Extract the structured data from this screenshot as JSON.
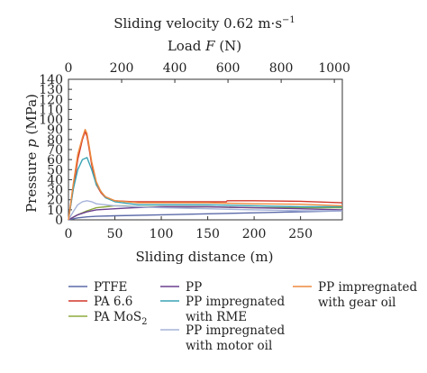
{
  "chart_data": {
    "type": "line",
    "title_top_1": "Sliding velocity 0.62 m·s",
    "title_top_1_sup": "−1",
    "title_top_2_prefix": "Load ",
    "title_top_2_var": "F",
    "title_top_2_suffix": " (N)",
    "xlabel": "Sliding distance (m)",
    "ylabel_prefix": "Pressure ",
    "ylabel_var": "p",
    "ylabel_suffix": " (MPa)",
    "xlim": [
      0,
      295
    ],
    "ylim": [
      0,
      140
    ],
    "x2lim": [
      0,
      1030
    ],
    "x_ticks": [
      0,
      50,
      100,
      150,
      200,
      250
    ],
    "y_ticks": [
      0,
      10,
      20,
      30,
      40,
      50,
      60,
      70,
      80,
      90,
      100,
      110,
      120,
      130,
      140
    ],
    "x2_ticks": [
      0,
      200,
      400,
      600,
      800,
      1000
    ],
    "legend_placement": "bottom",
    "series": [
      {
        "name": "PTFE",
        "color": "#5b6aa8",
        "x": [
          0,
          10,
          20,
          30,
          50,
          100,
          150,
          200,
          250,
          295
        ],
        "y": [
          0,
          2,
          3,
          3.5,
          4,
          5,
          6,
          7,
          8,
          9
        ]
      },
      {
        "name": "PA 6.6",
        "color": "#d2362a",
        "x": [
          0,
          5,
          10,
          15,
          18,
          20,
          22,
          25,
          30,
          35,
          40,
          50,
          70,
          100,
          150,
          170,
          171,
          200,
          250,
          295
        ],
        "y": [
          0,
          30,
          60,
          80,
          88,
          83,
          72,
          55,
          35,
          27,
          22,
          19,
          18,
          18,
          18,
          18,
          19,
          19,
          18.5,
          17
        ]
      },
      {
        "name": "PA MoS",
        "name_sub": "2",
        "color": "#8dab3f",
        "x": [
          0,
          10,
          20,
          30,
          40,
          50,
          60,
          75,
          100,
          150,
          200,
          250,
          295
        ],
        "y": [
          0,
          5,
          9,
          12,
          13,
          14,
          14,
          13,
          13,
          13,
          12,
          12,
          12
        ]
      },
      {
        "name": "PP",
        "color": "#6a3f8f",
        "x": [
          0,
          10,
          20,
          30,
          50,
          70,
          100,
          150,
          200,
          250,
          295
        ],
        "y": [
          0,
          5,
          8,
          10,
          11,
          12,
          13,
          13,
          12,
          11,
          10
        ]
      },
      {
        "name": "PP impregnated with RME",
        "color": "#3aa3b5",
        "x": [
          0,
          5,
          10,
          15,
          20,
          25,
          30,
          40,
          50,
          75,
          100,
          150,
          200,
          250,
          295
        ],
        "y": [
          0,
          30,
          50,
          60,
          62,
          50,
          35,
          22,
          18,
          15,
          15,
          15,
          14,
          13,
          13
        ]
      },
      {
        "name": "PP impregnated with motor oil",
        "color": "#a6b3da",
        "x": [
          0,
          5,
          10,
          15,
          20,
          25,
          30,
          40,
          50,
          75,
          100,
          150,
          200,
          250,
          295
        ],
        "y": [
          0,
          8,
          15,
          18,
          19,
          18,
          16,
          15,
          14,
          13,
          12,
          11,
          10,
          9,
          9
        ]
      },
      {
        "name": "PP impregnated with gear oil",
        "color": "#ee8a3e",
        "x": [
          0,
          5,
          10,
          15,
          18,
          20,
          22,
          25,
          30,
          35,
          40,
          50,
          75,
          100,
          150,
          200,
          250,
          295
        ],
        "y": [
          0,
          35,
          65,
          82,
          90,
          86,
          75,
          58,
          38,
          28,
          23,
          19,
          17,
          17,
          17,
          16,
          15.5,
          14
        ]
      }
    ]
  }
}
